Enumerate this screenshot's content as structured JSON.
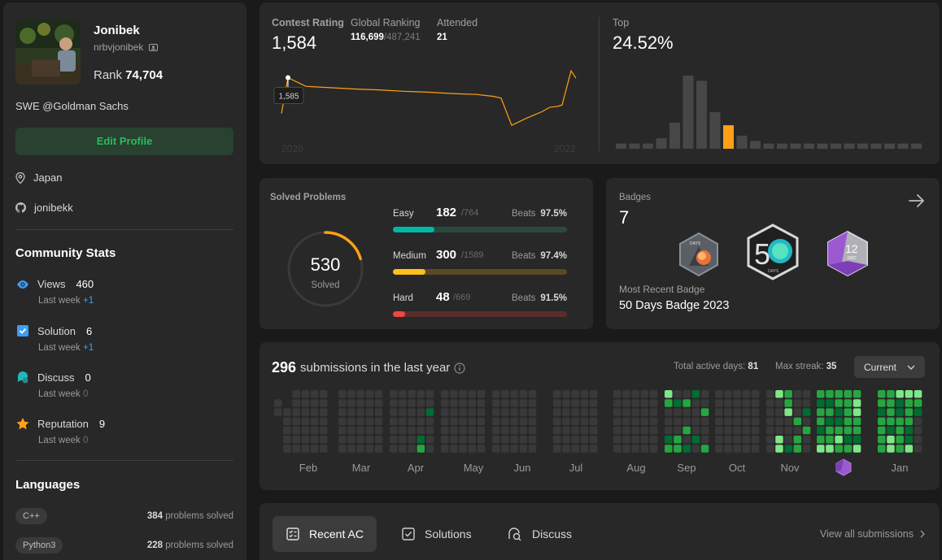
{
  "profile": {
    "name": "Jonibek",
    "username": "nrbvjonibek",
    "rank_label": "Rank",
    "rank_value": "74,704",
    "bio": "SWE @Goldman Sachs",
    "edit_label": "Edit Profile",
    "location": "Japan",
    "github": "jonibekk"
  },
  "community": {
    "title": "Community Stats",
    "stats": [
      {
        "label": "Views",
        "value": "460",
        "sub": "Last week",
        "delta": "+1",
        "color": "#3e9cf5"
      },
      {
        "label": "Solution",
        "value": "6",
        "sub": "Last week",
        "delta": "+1",
        "color": "#3e9cf5"
      },
      {
        "label": "Discuss",
        "value": "0",
        "sub": "Last week",
        "delta": "0",
        "color": "#1cbaba"
      },
      {
        "label": "Reputation",
        "value": "9",
        "sub": "Last week",
        "delta": "0",
        "color": "#ffa116"
      }
    ]
  },
  "languages": {
    "title": "Languages",
    "items": [
      {
        "name": "C++",
        "count": "384",
        "suffix": "problems solved"
      },
      {
        "name": "Python3",
        "count": "228",
        "suffix": "problems solved"
      }
    ]
  },
  "contest": {
    "rating_label": "Contest Rating",
    "rating": "1,584",
    "global_label": "Global Ranking",
    "global_rank": "116,699",
    "global_total": "/487,241",
    "attended_label": "Attended",
    "attended": "21",
    "top_label": "Top",
    "top_value": "24.52%",
    "tooltip": "1,585",
    "year_start": "2020",
    "year_end": "2022"
  },
  "chart_data": [
    {
      "type": "line",
      "title": "Contest Rating",
      "x": [
        0,
        1,
        2,
        3,
        4,
        5,
        6,
        7,
        8,
        9,
        10,
        11,
        12,
        13,
        14,
        15,
        16,
        17,
        18,
        19,
        20
      ],
      "values": [
        1506,
        1585,
        1566,
        1563,
        1560,
        1558,
        1555,
        1553,
        1550,
        1548,
        1546,
        1544,
        1540,
        1480,
        1495,
        1510,
        1520,
        1522,
        1525,
        1600,
        1584
      ],
      "x_ticks": [
        "2020",
        "2022"
      ],
      "ylim": [
        1450,
        1620
      ]
    },
    {
      "type": "bar",
      "title": "Top",
      "values": [
        2,
        2,
        2,
        4,
        10,
        28,
        26,
        14,
        9,
        5,
        3,
        2,
        2,
        2,
        2,
        2,
        2,
        2,
        2,
        2,
        2,
        2,
        2
      ],
      "highlight_index": 8,
      "highlight_color": "#ffa116",
      "bar_color": "#474747"
    }
  ],
  "solved": {
    "title": "Solved Problems",
    "total": "530",
    "total_label": "Solved",
    "total_fraction": 0.204,
    "difficulties": [
      {
        "label": "Easy",
        "solved": "182",
        "total": "/764",
        "beats_label": "Beats",
        "beats": "97.5%",
        "fraction": 0.238,
        "color": "#00b8a3",
        "track": "#2a4a3f"
      },
      {
        "label": "Medium",
        "solved": "300",
        "total": "/1589",
        "beats_label": "Beats",
        "beats": "97.4%",
        "fraction": 0.189,
        "color": "#ffc01e",
        "track": "#5a4a24"
      },
      {
        "label": "Hard",
        "solved": "48",
        "total": "/669",
        "beats_label": "Beats",
        "beats": "91.5%",
        "fraction": 0.072,
        "color": "#ef4743",
        "track": "#5a2d2d"
      }
    ]
  },
  "badges": {
    "title": "Badges",
    "count": "7",
    "recent_label": "Most Recent Badge",
    "recent_name": "50 Days Badge 2023",
    "b1_text": "DAYS",
    "b2_number": "5",
    "b2_text": "DAYS",
    "b3_number": "12",
    "b3_text": "DEC"
  },
  "submissions": {
    "count": "296",
    "title_text": "submissions in the last year",
    "active_label": "Total active days:",
    "active_value": "81",
    "streak_label": "Max streak:",
    "streak_value": "35",
    "dropdown": "Current",
    "months": [
      "Feb",
      "Mar",
      "Apr",
      "May",
      "Jun",
      "Jul",
      "Aug",
      "Sep",
      "Oct",
      "Nov",
      "Jan"
    ]
  },
  "tabs": {
    "recent_ac": "Recent AC",
    "solutions": "Solutions",
    "discuss": "Discuss",
    "view_all": "View all submissions"
  }
}
